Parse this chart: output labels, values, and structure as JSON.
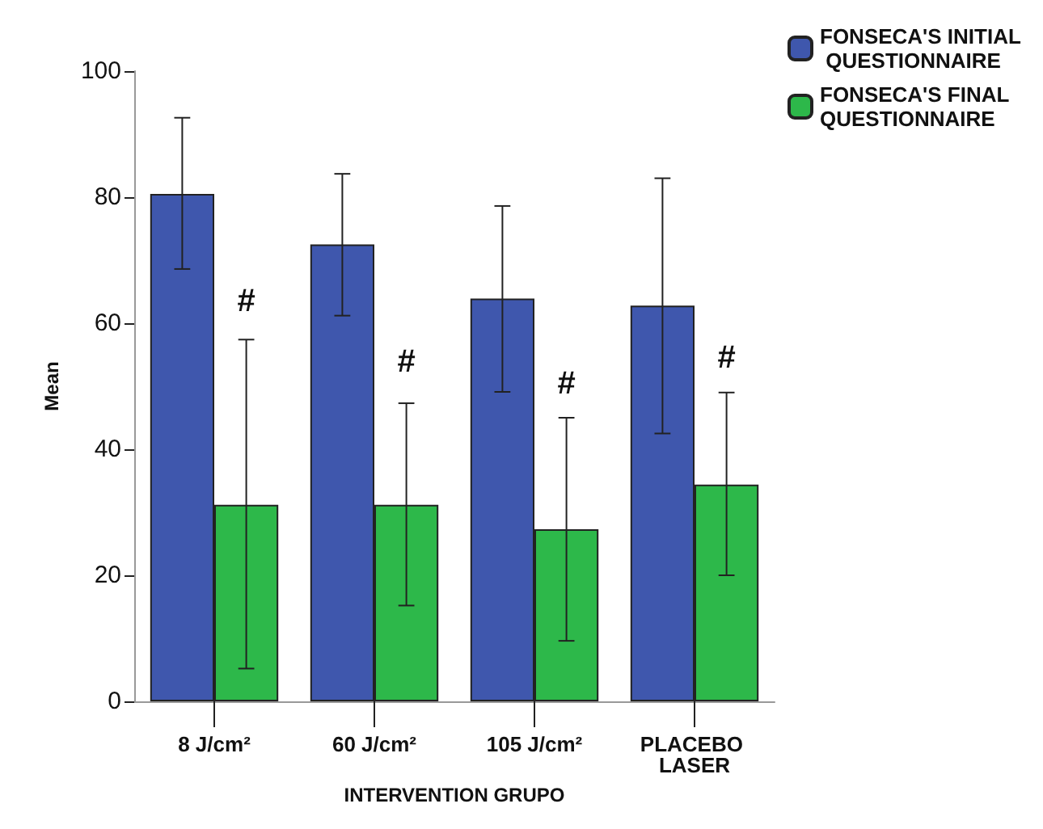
{
  "chart_data": {
    "type": "bar",
    "xlabel": "INTERVENTION GRUPO",
    "ylabel": "Mean",
    "categories": [
      "8 J/cm²",
      "60 J/cm²",
      "105 J/cm²",
      "PLACEBO LASER"
    ],
    "series": [
      {
        "name": "FONSECA'S INITIAL QUESTIONNAIRE",
        "color": "#3f57ad",
        "values": [
          80.5,
          72.5,
          63.9,
          62.8
        ],
        "errors": [
          [
            68.6,
            92.6
          ],
          [
            61.2,
            83.7
          ],
          [
            49.1,
            78.6
          ],
          [
            42.5,
            83.0
          ]
        ]
      },
      {
        "name": "FONSECA'S FINAL QUESTIONNAIRE",
        "color": "#2db84a",
        "values": [
          31.2,
          31.2,
          27.3,
          34.4
        ],
        "errors": [
          [
            5.2,
            57.4
          ],
          [
            15.2,
            47.3
          ],
          [
            9.6,
            45.0
          ],
          [
            20.0,
            49.0
          ]
        ]
      }
    ],
    "ylim": [
      0,
      100
    ],
    "yticks": [
      0,
      20,
      40,
      60,
      80,
      100
    ],
    "grid": false,
    "legend": "top right",
    "annotations": [
      {
        "text": "#",
        "x": "8 J/cm²",
        "y": 63.5
      },
      {
        "text": "#",
        "x": "60 J/cm²",
        "y": 53.9
      },
      {
        "text": "#",
        "x": "105 J/cm²",
        "y": 50.4
      },
      {
        "text": "#",
        "x": "PLACEBO LASER",
        "y": 54.5
      }
    ]
  }
}
